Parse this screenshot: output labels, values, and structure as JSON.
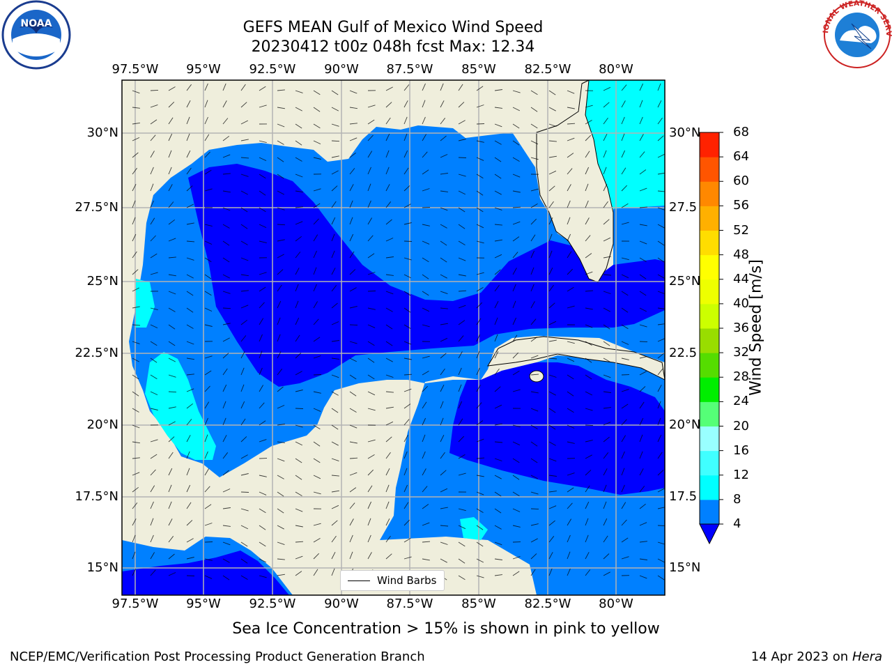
{
  "header": {
    "title_line1": "GEFS MEAN Gulf of Mexico Wind Speed",
    "title_line2": "20230412 t00z 048h fcst   Max: 12.34"
  },
  "logos": {
    "left": "NOAA",
    "right": "NATIONAL WEATHER SERVICE"
  },
  "map": {
    "lon_labels": [
      "97.5°W",
      "95°W",
      "92.5°W",
      "90°W",
      "87.5°W",
      "85°W",
      "82.5°W",
      "80°W"
    ],
    "lat_labels_left": [
      "30°N",
      "27.5°N",
      "25°N",
      "22.5°N",
      "20°N",
      "17.5°N",
      "15°N"
    ],
    "lat_labels_right": [
      "30°N",
      "27.5",
      "25°N",
      "22.5",
      "20°N",
      "17.5",
      "15°N"
    ],
    "legend_label": "Wind Barbs",
    "colors": {
      "land": "#efeedc",
      "wind_4_8": "#0080ff",
      "wind_0_4": "#0000ff",
      "wind_8_12": "#00ffff",
      "grid": "#b3b3b3"
    }
  },
  "colorbar": {
    "title": "Wind Speed [m/s]",
    "ticks": [
      "68",
      "64",
      "60",
      "56",
      "52",
      "48",
      "44",
      "40",
      "36",
      "32",
      "28",
      "24",
      "20",
      "16",
      "12",
      "8",
      "4"
    ],
    "colors": [
      "#0000ff",
      "#0080ff",
      "#00ffff",
      "#40ffff",
      "#99ffff",
      "#55ff77",
      "#00ee00",
      "#55dd00",
      "#99dd00",
      "#ccff00",
      "#eeff00",
      "#ffff00",
      "#ffdd00",
      "#ffb000",
      "#ff8800",
      "#ff5500",
      "#ff2200",
      "#ff0000"
    ]
  },
  "notes": {
    "sea_ice": "Sea Ice Concentration > 15% is shown in pink to yellow"
  },
  "footer": {
    "left": "NCEP/EMC/Verification Post Processing Product Generation Branch",
    "date": "14 Apr 2023 on",
    "host": "Hera"
  }
}
